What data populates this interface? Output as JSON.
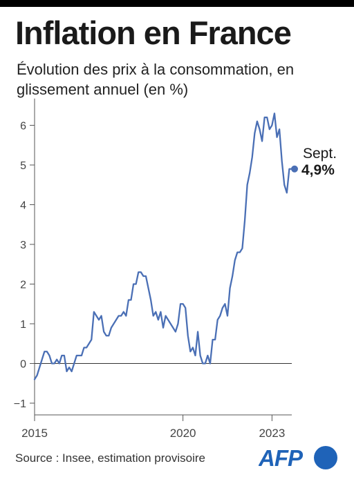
{
  "header": {
    "title": "Inflation en France",
    "subtitle": "Évolution des prix à la consommation, en glissement annuel (en %)"
  },
  "footer": {
    "source": "Source : Insee, estimation provisoire",
    "logo_text": "AFP"
  },
  "colors": {
    "line": "#4a6fb5",
    "axis": "#555555",
    "logo": "#1f63b8"
  },
  "chart_data": {
    "type": "line",
    "title": "Inflation en France",
    "subtitle": "Évolution des prix à la consommation, en glissement annuel (en %)",
    "xlabel": "",
    "ylabel": "",
    "xlim": [
      "2015-01",
      "2023-09"
    ],
    "ylim": [
      -1,
      6.5
    ],
    "y_ticks": [
      -1,
      0,
      1,
      2,
      3,
      4,
      5,
      6
    ],
    "x_ticks": [
      {
        "label": "2015",
        "date": "2015-01"
      },
      {
        "label": "2020",
        "date": "2020-01"
      },
      {
        "label": "2023",
        "date": "2023-01"
      }
    ],
    "grid": false,
    "annotation": {
      "month": "Sept.",
      "value": "4,9%",
      "date": "2023-09",
      "y": 4.9
    },
    "series": [
      {
        "start": "2015-01",
        "frequency": "monthly",
        "values": [
          -0.4,
          -0.3,
          -0.1,
          0.1,
          0.3,
          0.3,
          0.2,
          0.0,
          0.0,
          0.1,
          0.0,
          0.2,
          0.2,
          -0.2,
          -0.1,
          -0.2,
          0.0,
          0.2,
          0.2,
          0.2,
          0.4,
          0.4,
          0.5,
          0.6,
          1.3,
          1.2,
          1.1,
          1.2,
          0.8,
          0.7,
          0.7,
          0.9,
          1.0,
          1.1,
          1.2,
          1.2,
          1.3,
          1.2,
          1.6,
          1.6,
          2.0,
          2.0,
          2.3,
          2.3,
          2.2,
          2.2,
          1.9,
          1.6,
          1.2,
          1.3,
          1.1,
          1.3,
          0.9,
          1.2,
          1.1,
          1.0,
          0.9,
          0.8,
          1.0,
          1.5,
          1.5,
          1.4,
          0.7,
          0.3,
          0.4,
          0.2,
          0.8,
          0.2,
          0.0,
          0.0,
          0.2,
          0.0,
          0.6,
          0.6,
          1.1,
          1.2,
          1.4,
          1.5,
          1.2,
          1.9,
          2.2,
          2.6,
          2.8,
          2.8,
          2.9,
          3.6,
          4.5,
          4.8,
          5.2,
          5.8,
          6.1,
          5.9,
          5.6,
          6.2,
          6.2,
          5.9,
          6.0,
          6.3,
          5.7,
          5.9,
          5.1,
          4.5,
          4.3,
          4.9,
          4.9
        ]
      }
    ]
  }
}
